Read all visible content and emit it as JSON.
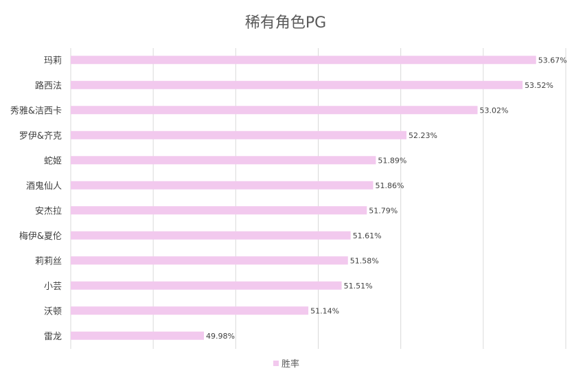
{
  "chart_data": {
    "type": "bar",
    "orientation": "horizontal",
    "title": "稀有角色PG",
    "categories": [
      "玛莉",
      "路西法",
      "秀雅&洁西卡",
      "罗伊&齐克",
      "蛇姬",
      "酒鬼仙人",
      "安杰拉",
      "梅伊&夏伦",
      "莉莉丝",
      "小芸",
      "沃顿",
      "雷龙"
    ],
    "series": [
      {
        "name": "胜率",
        "values": [
          53.67,
          53.52,
          53.02,
          52.23,
          51.89,
          51.86,
          51.79,
          51.61,
          51.58,
          51.51,
          51.14,
          49.98
        ],
        "value_labels": [
          "53.67%",
          "53.52%",
          "53.02%",
          "52.23%",
          "51.89%",
          "51.86%",
          "51.79%",
          "51.61%",
          "51.58%",
          "51.51%",
          "51.14%",
          "49.98%"
        ]
      }
    ],
    "xlim": [
      48.5,
      54.0
    ],
    "grid": "vertical",
    "legend": "bottom",
    "bar_color": "#f2c9ee"
  }
}
